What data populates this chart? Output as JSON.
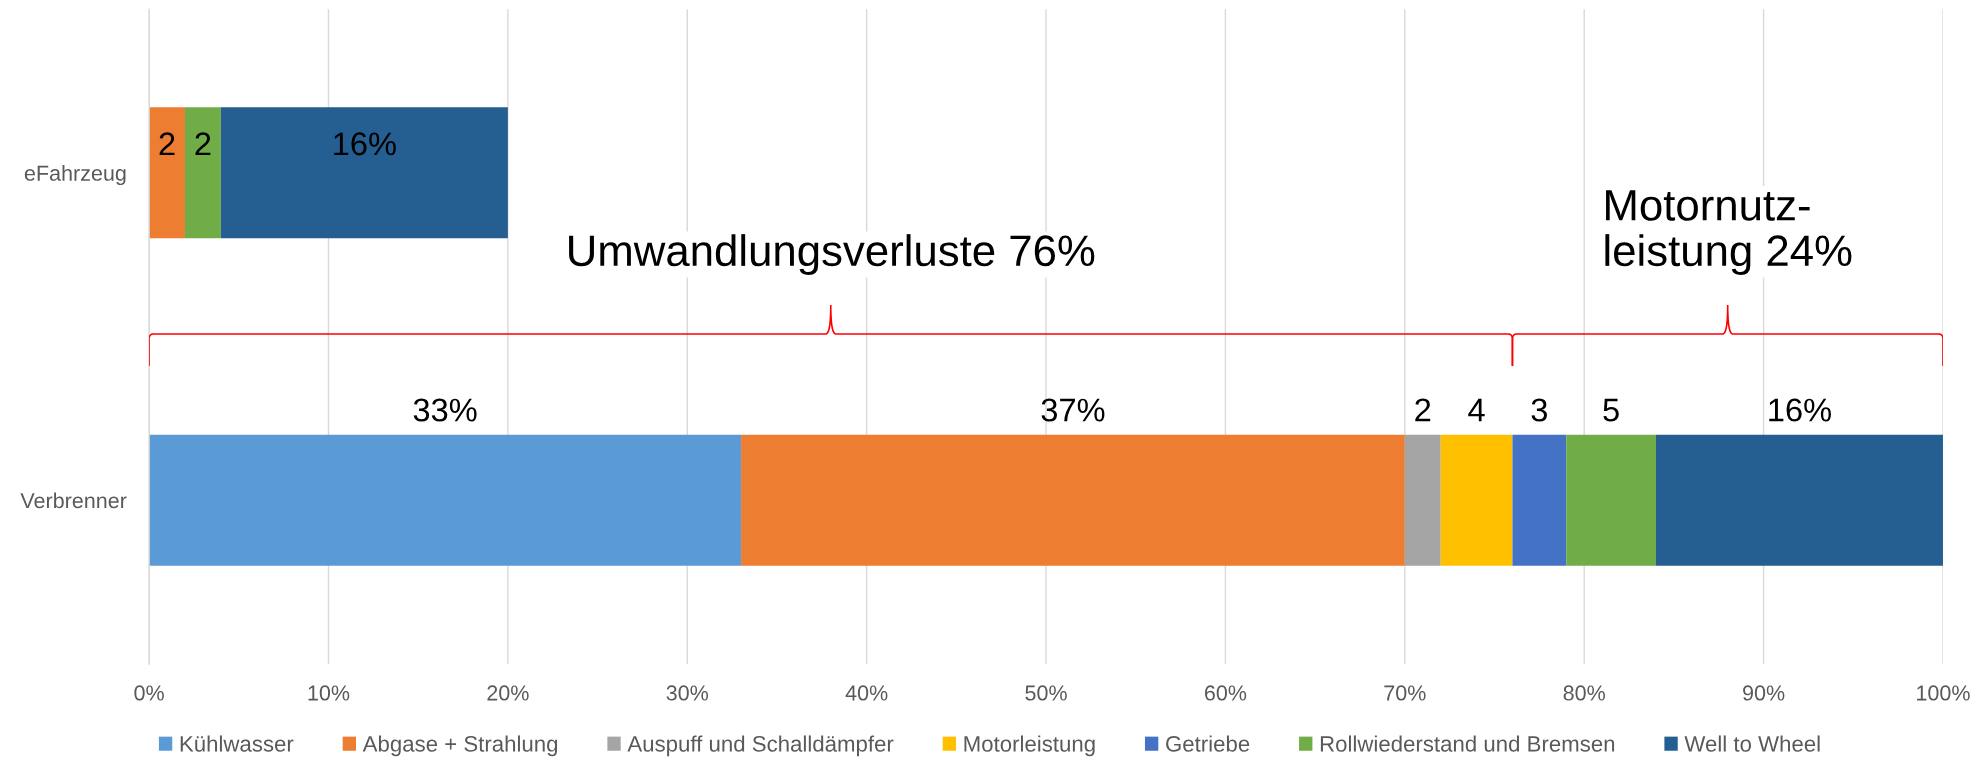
{
  "chart_data": {
    "type": "bar",
    "orientation": "horizontal",
    "stacked": true,
    "categories": [
      "eFahrzeug",
      "Verbrenner"
    ],
    "series": [
      {
        "name": "Kühlwasser",
        "color": "#5b9bd5",
        "values": [
          null,
          33
        ],
        "value_labels": [
          null,
          "33%"
        ]
      },
      {
        "name": "Abgase + Strahlung",
        "color": "#ed7d31",
        "values": [
          2,
          37
        ],
        "value_labels": [
          "2",
          "37%"
        ]
      },
      {
        "name": "Auspuff und Schalldämpfer",
        "color": "#a5a5a5",
        "values": [
          null,
          2
        ],
        "value_labels": [
          null,
          "2"
        ]
      },
      {
        "name": "Motorleistung",
        "color": "#ffc000",
        "values": [
          null,
          4
        ],
        "value_labels": [
          null,
          "4"
        ]
      },
      {
        "name": "Getriebe",
        "color": "#4472c4",
        "values": [
          null,
          3
        ],
        "value_labels": [
          null,
          "3"
        ]
      },
      {
        "name": "Rollwiederstand und Bremsen",
        "color": "#70ad47",
        "values": [
          2,
          5
        ],
        "value_labels": [
          "2",
          "5"
        ]
      },
      {
        "name": "Well to Wheel",
        "color": "#255e91",
        "values": [
          16,
          16
        ],
        "value_labels": [
          "16%",
          "16%"
        ]
      }
    ],
    "xlim": [
      0,
      100
    ],
    "xticks": [
      {
        "value": 0,
        "label": "0%"
      },
      {
        "value": 10,
        "label": "10%"
      },
      {
        "value": 20,
        "label": "20%"
      },
      {
        "value": 30,
        "label": "30%"
      },
      {
        "value": 40,
        "label": "40%"
      },
      {
        "value": 50,
        "label": "50%"
      },
      {
        "value": 60,
        "label": "60%"
      },
      {
        "value": 70,
        "label": "70%"
      },
      {
        "value": 80,
        "label": "80%"
      },
      {
        "value": 90,
        "label": "90%"
      },
      {
        "value": 100,
        "label": "100%"
      }
    ],
    "grid": "x",
    "legend": "bottom",
    "annotations": [
      "Umwandlungsverluste 76%",
      "Motornutz-\nleistung 24%"
    ]
  }
}
